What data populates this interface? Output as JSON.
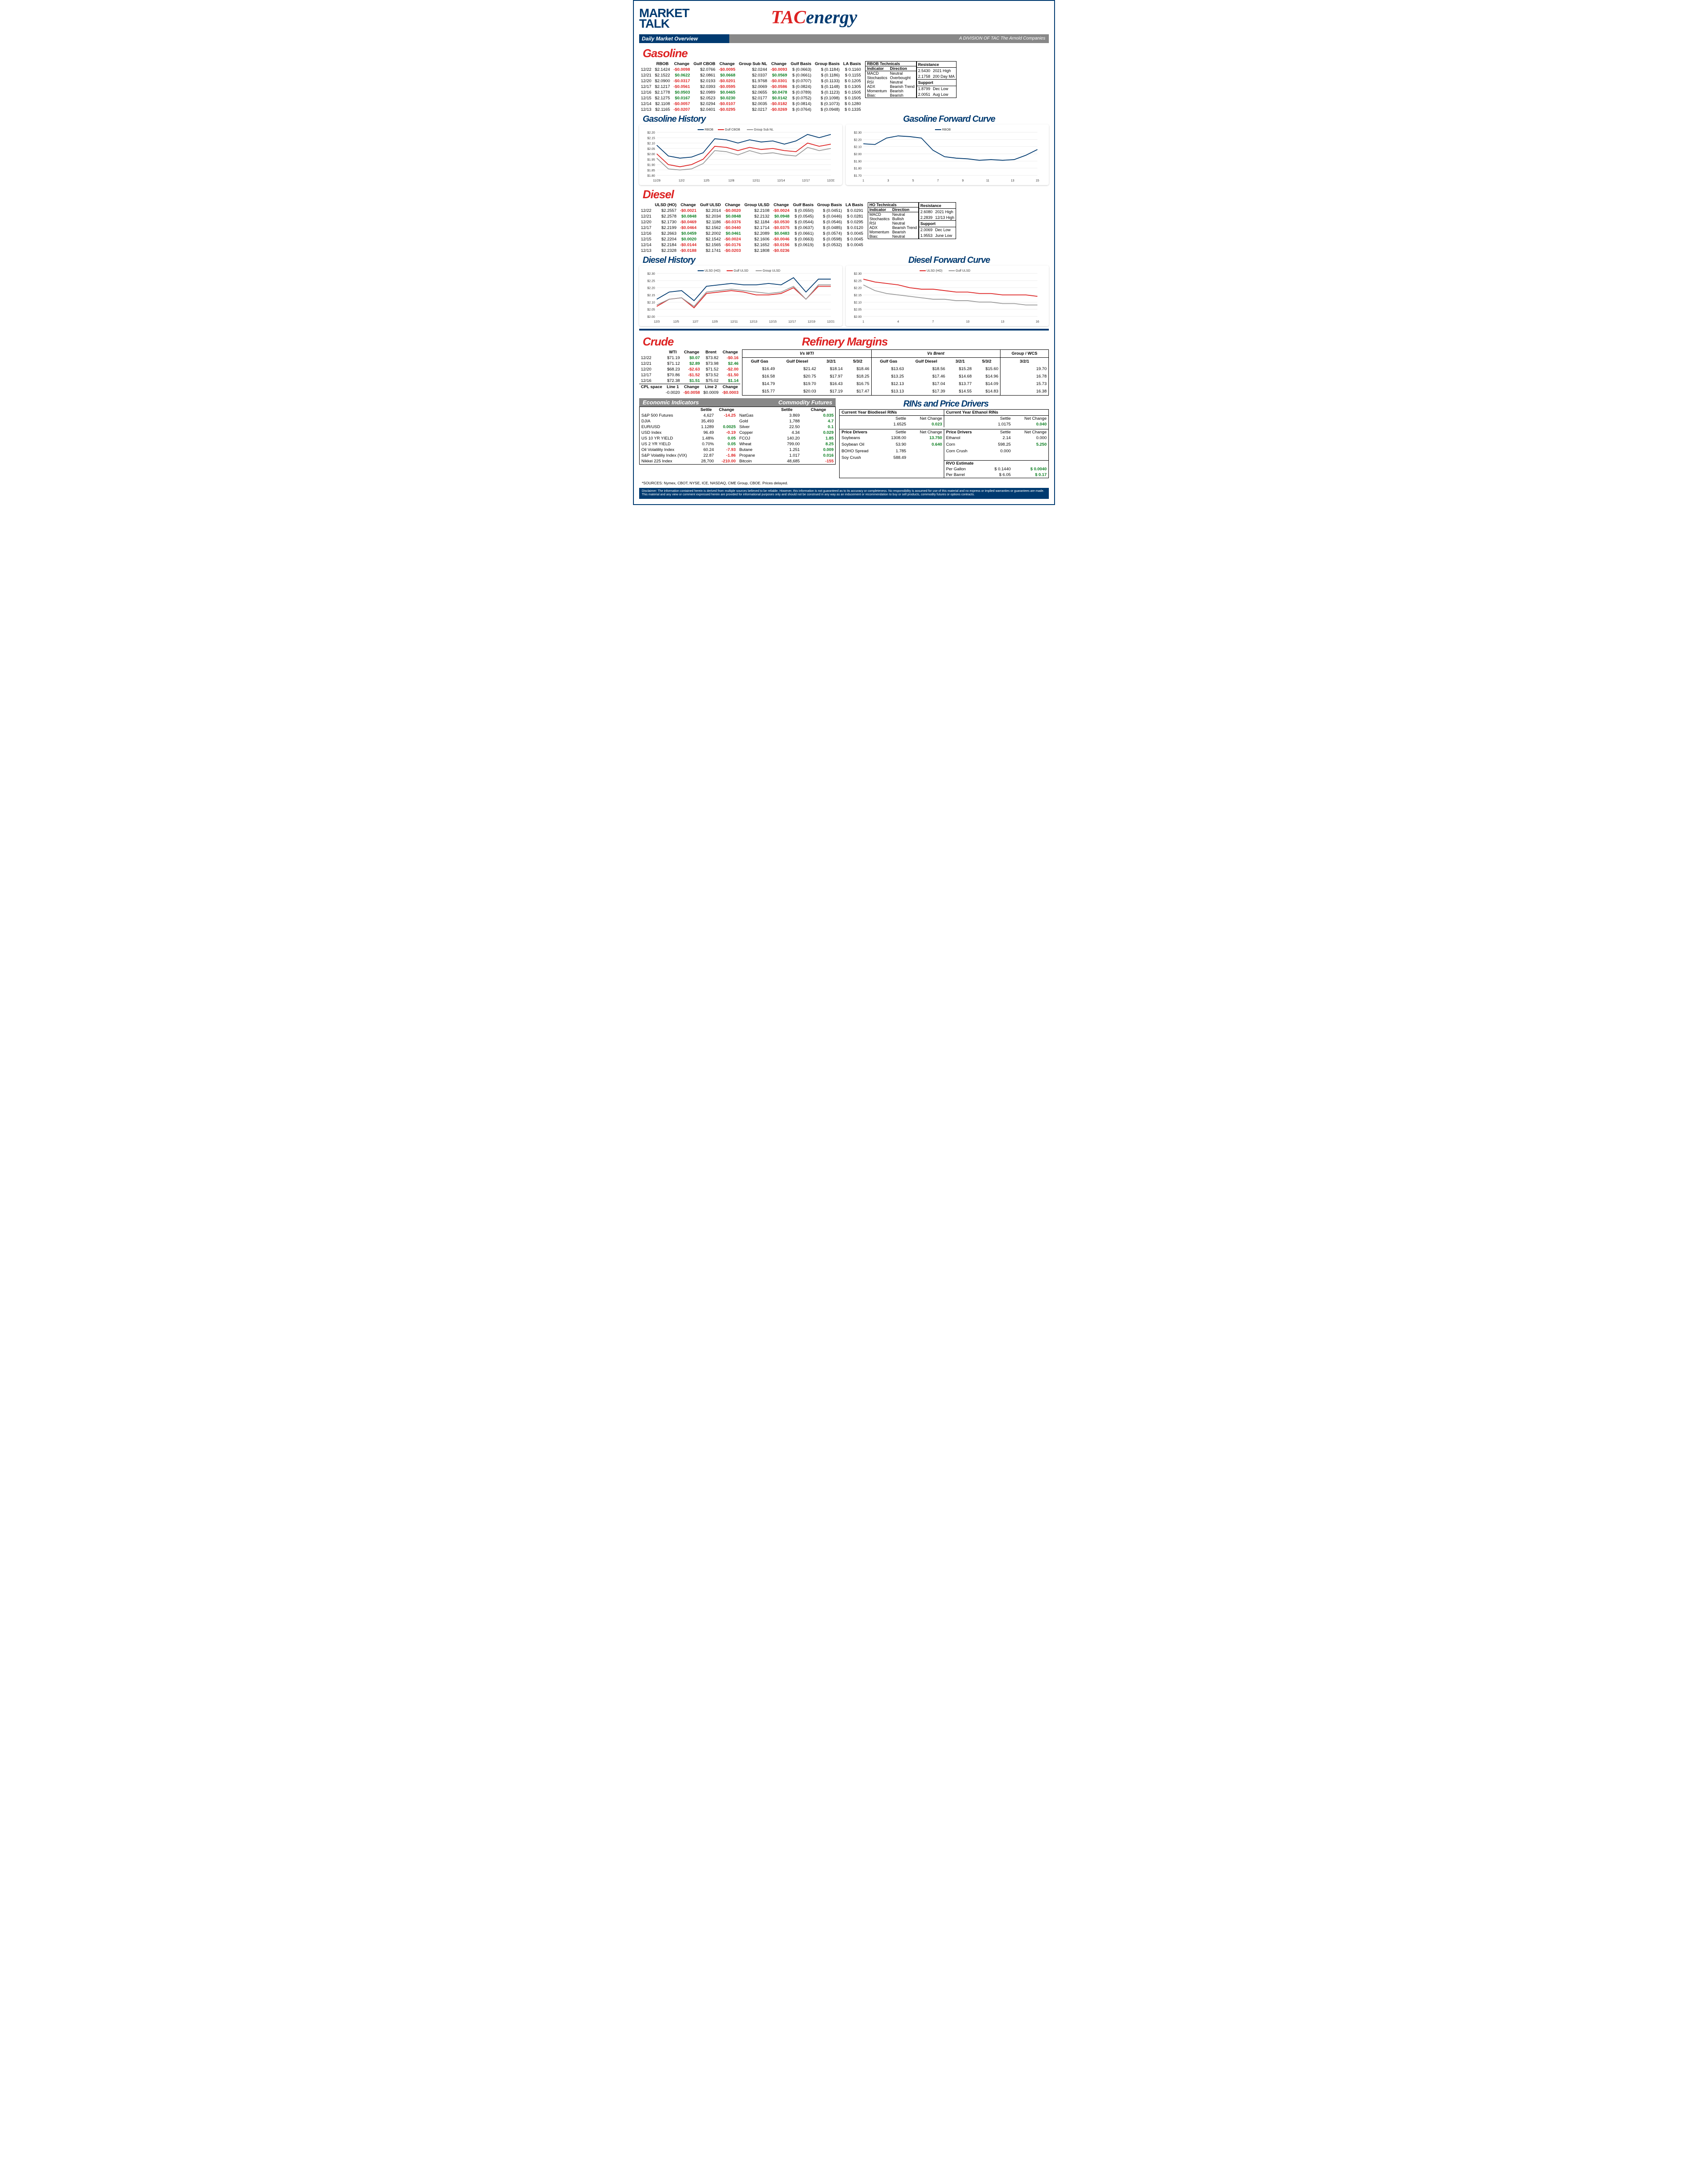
{
  "header": {
    "market": "MARKET",
    "talk": "TALK",
    "tac1": "TAC",
    "tac2": "energy",
    "dmo": "Daily Market Overview",
    "division": "A DIVISION OF TAC The Arnold Companies"
  },
  "gasoline": {
    "title": "Gasoline",
    "cols": [
      "",
      "RBOB",
      "Change",
      "Gulf CBOB",
      "Change",
      "Group Sub NL",
      "Change",
      "Gulf Basis",
      "Group Basis",
      "LA Basis"
    ],
    "rows": [
      [
        "12/22",
        "$2.1424",
        "-$0.0098",
        "$2.0766",
        "-$0.0095",
        "$2.0244",
        "-$0.0093",
        "$ (0.0663)",
        "$     (0.1184)",
        "$    0.1160"
      ],
      [
        "12/21",
        "$2.1522",
        "$0.0622",
        "$2.0861",
        "$0.0668",
        "$2.0337",
        "$0.0569",
        "$ (0.0661)",
        "$     (0.1186)",
        "$    0.1155"
      ],
      [
        "12/20",
        "$2.0900",
        "-$0.0317",
        "$2.0193",
        "-$0.0201",
        "$1.9768",
        "-$0.0301",
        "$ (0.0707)",
        "$     (0.1133)",
        "$    0.1205"
      ],
      [
        "12/17",
        "$2.1217",
        "-$0.0561",
        "$2.0393",
        "-$0.0595",
        "$2.0069",
        "-$0.0586",
        "$ (0.0824)",
        "$     (0.1148)",
        "$    0.1305"
      ],
      [
        "12/16",
        "$2.1778",
        "$0.0503",
        "$2.0989",
        "$0.0465",
        "$2.0655",
        "$0.0478",
        "$ (0.0789)",
        "$     (0.1123)",
        "$    0.1505"
      ],
      [
        "12/15",
        "$2.1275",
        "$0.0167",
        "$2.0523",
        "$0.0230",
        "$2.0177",
        "$0.0142",
        "$ (0.0752)",
        "$     (0.1098)",
        "$    0.1505"
      ],
      [
        "12/14",
        "$2.1108",
        "-$0.0057",
        "$2.0294",
        "-$0.0107",
        "$2.0035",
        "-$0.0182",
        "$ (0.0814)",
        "$     (0.1073)",
        "$    0.1280"
      ],
      [
        "12/13",
        "$2.1165",
        "-$0.0207",
        "$2.0401",
        "-$0.0295",
        "$2.0217",
        "-$0.0269",
        "$ (0.0764)",
        "$     (0.0948)",
        "$    0.1335"
      ]
    ],
    "tech": {
      "title": "RBOB Technicals",
      "rows": [
        [
          "Indicator",
          "Direction"
        ],
        [
          "MACD",
          "Neutral"
        ],
        [
          "Stochastics",
          "Overbought"
        ],
        [
          "RSI",
          "Neutral"
        ],
        [
          "ADX",
          "Bearish Trend"
        ],
        [
          "Momentum",
          "Bearish"
        ],
        [
          "Bias:",
          "Bearish"
        ]
      ],
      "res_title": "Resistance",
      "res": [
        [
          "2.5430",
          "2021 High"
        ],
        [
          "2.1758",
          "200 Day MA"
        ],
        [
          "1.8799",
          "Dec Low"
        ],
        [
          "2.0051",
          "Aug Low"
        ]
      ],
      "sup_title": "Support"
    },
    "history_title": "Gasoline History",
    "forward_title": "Gasoline Forward Curve",
    "history_chart": {
      "ylim": [
        1.8,
        2.2
      ],
      "yticks": [
        "$1.80",
        "$1.85",
        "$1.90",
        "$1.95",
        "$2.00",
        "$2.05",
        "$2.10",
        "$2.15",
        "$2.20"
      ],
      "xlabels": [
        "11/29",
        "12/2",
        "12/5",
        "12/8",
        "12/11",
        "12/14",
        "12/17",
        "12/20"
      ],
      "series": [
        {
          "name": "RBOB",
          "color": "#003a70",
          "values": [
            2.08,
            1.98,
            1.96,
            1.97,
            2.01,
            2.14,
            2.13,
            2.1,
            2.13,
            2.11,
            2.12,
            2.09,
            2.12,
            2.18,
            2.15,
            2.18
          ]
        },
        {
          "name": "Gulf CBOB",
          "color": "#d22",
          "values": [
            2.0,
            1.9,
            1.88,
            1.9,
            1.95,
            2.07,
            2.06,
            2.03,
            2.06,
            2.04,
            2.05,
            2.03,
            2.02,
            2.1,
            2.07,
            2.09
          ]
        },
        {
          "name": "Group Sub NL",
          "color": "#999",
          "values": [
            1.96,
            1.86,
            1.85,
            1.86,
            1.91,
            2.03,
            2.02,
            1.99,
            2.03,
            2.0,
            2.01,
            1.99,
            1.98,
            2.06,
            2.03,
            2.05
          ]
        }
      ]
    },
    "forward_chart": {
      "ylim": [
        1.7,
        2.3
      ],
      "yticks": [
        "$1.70",
        "$1.80",
        "$1.90",
        "$2.00",
        "$2.10",
        "$2.20",
        "$2.30"
      ],
      "xlabels": [
        "1",
        "3",
        "5",
        "7",
        "9",
        "11",
        "13",
        "15"
      ],
      "series": [
        {
          "name": "RBOB",
          "color": "#003a70",
          "values": [
            2.14,
            2.13,
            2.22,
            2.25,
            2.24,
            2.22,
            2.05,
            1.96,
            1.94,
            1.93,
            1.91,
            1.92,
            1.91,
            1.92,
            1.98,
            2.06
          ]
        }
      ]
    }
  },
  "diesel": {
    "title": "Diesel",
    "cols": [
      "",
      "ULSD (HO)",
      "Change",
      "Gulf ULSD",
      "Change",
      "Group ULSD",
      "Change",
      "Gulf Basis",
      "Group Basis",
      "LA Basis"
    ],
    "rows": [
      [
        "12/22",
        "$2.2557",
        "-$0.0021",
        "$2.2014",
        "-$0.0020",
        "$2.2108",
        "-$0.0024",
        "$ (0.0550)",
        "$     (0.0451)",
        "$    0.0291"
      ],
      [
        "12/21",
        "$2.2578",
        "$0.0848",
        "$2.2034",
        "$0.0848",
        "$2.2132",
        "$0.0948",
        "$ (0.0545)",
        "$     (0.0446)",
        "$    0.0281"
      ],
      [
        "12/20",
        "$2.1730",
        "-$0.0469",
        "$2.1186",
        "-$0.0376",
        "$2.1184",
        "-$0.0530",
        "$ (0.0544)",
        "$     (0.0546)",
        "$    0.0295"
      ],
      [
        "12/17",
        "$2.2199",
        "-$0.0464",
        "$2.1562",
        "-$0.0440",
        "$2.1714",
        "-$0.0375",
        "$ (0.0637)",
        "$     (0.0485)",
        "$    0.0120"
      ],
      [
        "12/16",
        "$2.2663",
        "$0.0459",
        "$2.2002",
        "$0.0461",
        "$2.2089",
        "$0.0483",
        "$ (0.0661)",
        "$     (0.0574)",
        "$    0.0045"
      ],
      [
        "12/15",
        "$2.2204",
        "$0.0020",
        "$2.1542",
        "-$0.0024",
        "$2.1606",
        "-$0.0046",
        "$ (0.0663)",
        "$     (0.0598)",
        "$    0.0045"
      ],
      [
        "12/14",
        "$2.2184",
        "-$0.0144",
        "$2.1565",
        "-$0.0176",
        "$2.1652",
        "-$0.0156",
        "$ (0.0619)",
        "$     (0.0532)",
        "$    0.0045"
      ],
      [
        "12/13",
        "$2.2328",
        "-$0.0188",
        "$2.1741",
        "-$0.0203",
        "$2.1808",
        "-$0.0236",
        "",
        "",
        ""
      ]
    ],
    "tech": {
      "title": "HO Technicals",
      "rows": [
        [
          "Indicator",
          "Direction"
        ],
        [
          "MACD",
          "Neutral"
        ],
        [
          "Stochastics",
          "Bullish"
        ],
        [
          "RSI",
          "Neutral"
        ],
        [
          "ADX",
          "Bearish Trend"
        ],
        [
          "Momentum",
          "Bearish"
        ],
        [
          "Bias:",
          "Neutral"
        ]
      ],
      "res_title": "Resistance",
      "res": [
        [
          "2.6080",
          "2021 High"
        ],
        [
          "2.2839",
          "12/13 High"
        ],
        [
          "2.0069",
          "Dec Low"
        ],
        [
          "1.9553",
          "June Low"
        ]
      ],
      "sup_title": "Support"
    },
    "history_title": "Diesel History",
    "forward_title": "Diesel Forward Curve",
    "history_chart": {
      "ylim": [
        2.0,
        2.3
      ],
      "yticks": [
        "$2.00",
        "$2.05",
        "$2.10",
        "$2.15",
        "$2.20",
        "$2.25",
        "$2.30"
      ],
      "xlabels": [
        "12/3",
        "12/5",
        "12/7",
        "12/9",
        "12/11",
        "12/13",
        "12/15",
        "12/17",
        "12/19",
        "12/21"
      ],
      "series": [
        {
          "name": "ULSD (HO)",
          "color": "#003a70",
          "values": [
            2.12,
            2.17,
            2.18,
            2.11,
            2.21,
            2.22,
            2.23,
            2.22,
            2.22,
            2.23,
            2.22,
            2.27,
            2.17,
            2.26,
            2.26
          ]
        },
        {
          "name": "Gulf ULSD",
          "color": "#d22",
          "values": [
            2.07,
            2.12,
            2.13,
            2.06,
            2.16,
            2.17,
            2.18,
            2.17,
            2.15,
            2.15,
            2.16,
            2.2,
            2.12,
            2.21,
            2.21
          ]
        },
        {
          "name": "Group ULSD",
          "color": "#999",
          "values": [
            2.08,
            2.12,
            2.13,
            2.07,
            2.17,
            2.18,
            2.19,
            2.18,
            2.17,
            2.16,
            2.17,
            2.21,
            2.12,
            2.22,
            2.22
          ]
        }
      ]
    },
    "forward_chart": {
      "ylim": [
        2.0,
        2.3
      ],
      "yticks": [
        "$2.00",
        "$2.05",
        "$2.10",
        "$2.15",
        "$2.20",
        "$2.25",
        "$2.30"
      ],
      "xlabels": [
        "1",
        "4",
        "7",
        "10",
        "13",
        "16"
      ],
      "series": [
        {
          "name": "ULSD (HO)",
          "color": "#d22",
          "values": [
            2.26,
            2.24,
            2.23,
            2.22,
            2.2,
            2.19,
            2.19,
            2.18,
            2.17,
            2.17,
            2.16,
            2.16,
            2.15,
            2.15,
            2.15,
            2.14
          ]
        },
        {
          "name": "Gulf ULSD",
          "color": "#999",
          "values": [
            2.22,
            2.18,
            2.16,
            2.15,
            2.14,
            2.13,
            2.12,
            2.12,
            2.11,
            2.11,
            2.1,
            2.1,
            2.09,
            2.09,
            2.08,
            2.08
          ]
        }
      ]
    }
  },
  "crude": {
    "title": "Crude",
    "cols": [
      "",
      "WTI",
      "Change",
      "Brent",
      "Change"
    ],
    "rows": [
      [
        "12/22",
        "$71.19",
        "$0.07",
        "$73.82",
        "-$0.16"
      ],
      [
        "12/21",
        "$71.12",
        "$2.89",
        "$73.98",
        "$2.46"
      ],
      [
        "12/20",
        "$68.23",
        "-$2.63",
        "$71.52",
        "-$2.00"
      ],
      [
        "12/17",
        "$70.86",
        "-$1.52",
        "$73.52",
        "-$1.50"
      ],
      [
        "12/16",
        "$72.38",
        "$1.51",
        "$75.02",
        "$1.14"
      ]
    ],
    "cpl": [
      "CPL space",
      "Line 1",
      "Change",
      "Line 2",
      "Change"
    ],
    "cpl_vals": [
      "",
      "-0.0020",
      "-$0.0058",
      "$0.0009",
      "-$0.0003"
    ]
  },
  "margins": {
    "title": "Refinery Margins",
    "vswti": "Vs WTI",
    "vsbrent": "Vs Brent",
    "grpwcs": "Group / WCS",
    "cols": [
      "Gulf Gas",
      "Gulf Diesel",
      "3/2/1",
      "5/3/2",
      "Gulf Gas",
      "Gulf Diesel",
      "3/2/1",
      "5/3/2",
      "3/2/1"
    ],
    "rows": [
      [
        "$16.49",
        "$21.42",
        "$18.14",
        "$18.46",
        "$13.63",
        "$18.56",
        "$15.28",
        "$15.60",
        "19.70"
      ],
      [
        "$16.58",
        "$20.75",
        "$17.97",
        "$18.25",
        "$13.25",
        "$17.46",
        "$14.68",
        "$14.96",
        "16.78"
      ],
      [
        "$14.79",
        "$19.70",
        "$16.43",
        "$16.75",
        "$12.13",
        "$17.04",
        "$13.77",
        "$14.09",
        "15.73"
      ],
      [
        "$15.77",
        "$20.03",
        "$17.19",
        "$17.47",
        "$13.13",
        "$17.39",
        "$14.55",
        "$14.83",
        "16.38"
      ]
    ]
  },
  "econ": {
    "title1": "Economic Indicators",
    "title2": "Commodity Futures",
    "cols1": [
      "",
      "Settle",
      "Change"
    ],
    "rows1": [
      [
        "S&P 500 Futures",
        "4,627",
        "-14.25"
      ],
      [
        "DJIA",
        "35,493",
        ""
      ],
      [
        "EUR/USD",
        "1.1289",
        "0.0025"
      ],
      [
        "USD Index",
        "96.49",
        "-0.19"
      ],
      [
        "US 10 YR YIELD",
        "1.48%",
        "0.05"
      ],
      [
        "US 2 YR YIELD",
        "0.70%",
        "0.05"
      ],
      [
        "Oil Volatility Index",
        "60.24",
        "-7.93"
      ],
      [
        "S&P Volatiliy Index (VIX)",
        "22.87",
        "-1.86"
      ],
      [
        "Nikkei 225 Index",
        "28,700",
        "-210.00"
      ]
    ],
    "cols2": [
      "",
      "Settle",
      "Change"
    ],
    "rows2": [
      [
        "NatGas",
        "3.869",
        "0.035"
      ],
      [
        "Gold",
        "1,788",
        "4.7"
      ],
      [
        "Silver",
        "22.50",
        "0.1"
      ],
      [
        "Copper",
        "4.34",
        "0.029"
      ],
      [
        "FCOJ",
        "140.20",
        "1.85"
      ],
      [
        "Wheat",
        "799.00",
        "8.25"
      ],
      [
        "Butane",
        "1.251",
        "0.009"
      ],
      [
        "Propane",
        "1.017",
        "0.016"
      ],
      [
        "Bitcoin",
        "48,685",
        "-155"
      ]
    ]
  },
  "rins": {
    "title": "RINs and Price Drivers",
    "bio_title": "Current Year Biodiesel RINs",
    "eth_title": "Current Year Ethanol RINs",
    "bio": {
      "settle": "1.6525",
      "netchg": "0.023",
      "lbl_s": "Settle",
      "lbl_n": "Net Change"
    },
    "eth": {
      "settle": "1.0175",
      "netchg": "0.040",
      "lbl_s": "Settle",
      "lbl_n": "Net Change"
    },
    "pd_title": "Price Drivers",
    "pd_left": [
      [
        "Soybeans",
        "1308.00",
        "13.750"
      ],
      [
        "",
        "",
        ""
      ],
      [
        "Soybean Oil",
        "53.90",
        "0.640"
      ],
      [
        "",
        "",
        ""
      ],
      [
        "BOHO Spread",
        "1.785",
        ""
      ],
      [
        "",
        "",
        ""
      ],
      [
        "Soy Crush",
        "588.49",
        ""
      ]
    ],
    "pd_right": [
      [
        "Ethanol",
        "2.14",
        "0.000"
      ],
      [
        "",
        "",
        ""
      ],
      [
        "Corn",
        "598.25",
        "5.250"
      ],
      [
        "",
        "",
        ""
      ],
      [
        "Corn Crush",
        "0.000",
        ""
      ],
      [
        "",
        "",
        ""
      ]
    ],
    "rvo": {
      "title": "RVO Estimate",
      "r1": [
        "Per Gallon",
        "$    0.1440",
        "$       0.0040"
      ],
      "r2": [
        "Per Barrel",
        "$       6.05",
        "$         0.17"
      ]
    }
  },
  "sources": "*SOURCES: Nymex, CBOT, NYSE, ICE, NASDAQ, CME Group, CBOE.    Prices delayed.",
  "disclaimer": "Disclaimer: The information contained herein is derived from multiple sources believed to be reliable.  However, this information is not guaranteed as to its accuracy or completeness. No responsibility is assumed for use of this material and no express or implied warranties or guarantees are made. This material and any view or comment expressed herein are provided for informational purposes only and should not be construed in any way as an inducement or recommendation to buy or sell products, commodity futures or options contracts."
}
